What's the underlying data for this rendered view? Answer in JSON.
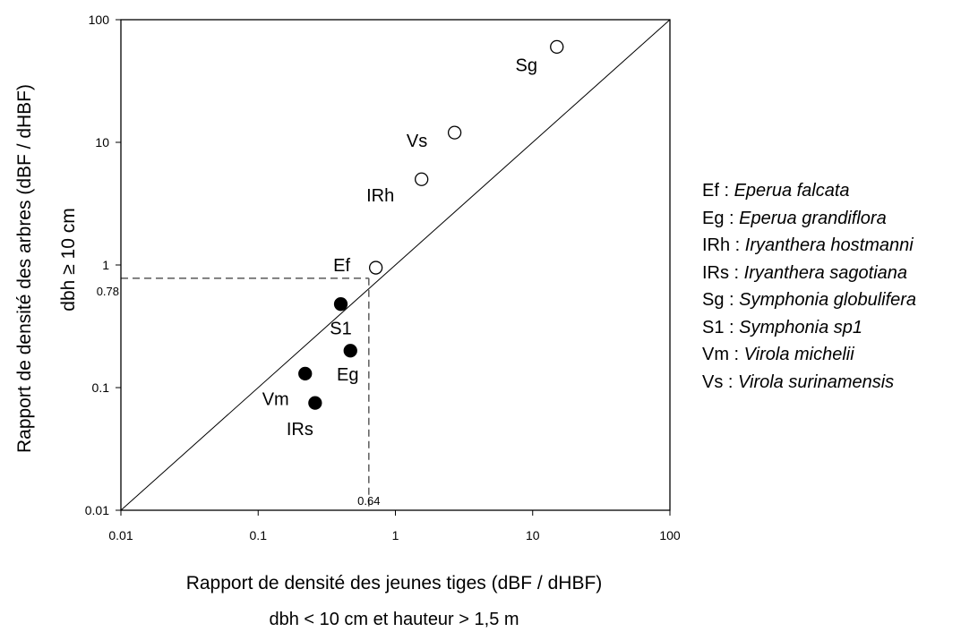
{
  "chart_data": {
    "type": "scatter",
    "x_scale": "log",
    "y_scale": "log",
    "xlim": [
      0.01,
      100
    ],
    "ylim": [
      0.01,
      100
    ],
    "xticks": [
      "0.01",
      "0.1",
      "1",
      "10",
      "100"
    ],
    "yticks": [
      "0.01",
      "0.1",
      "1",
      "10",
      "100"
    ],
    "xlabel": "Rapport de densité des jeunes tiges (dBF / dHBF)",
    "xlabel2": "dbh < 10 cm et hauteur > 1,5 m",
    "ylabel": "Rapport de densité des arbres (dBF / dHBF)",
    "ylabel2": "dbh ≥ 10 cm",
    "reference_line": "1:1",
    "threshold": {
      "x": 0.64,
      "y": 0.78,
      "x_label": "0.64",
      "y_label": "0.78"
    },
    "points": [
      {
        "label": "Sg",
        "x": 15,
        "y": 60,
        "filled": false
      },
      {
        "label": "Vs",
        "x": 2.7,
        "y": 12,
        "filled": false
      },
      {
        "label": "IRh",
        "x": 1.55,
        "y": 5.0,
        "filled": false
      },
      {
        "label": "Ef",
        "x": 0.72,
        "y": 0.95,
        "filled": false
      },
      {
        "label": "S1",
        "x": 0.4,
        "y": 0.48,
        "filled": true
      },
      {
        "label": "Eg",
        "x": 0.47,
        "y": 0.2,
        "filled": true
      },
      {
        "label": "Vm",
        "x": 0.22,
        "y": 0.13,
        "filled": true
      },
      {
        "label": "IRs",
        "x": 0.26,
        "y": 0.075,
        "filled": true
      }
    ],
    "grid": false,
    "legend_position": "right"
  },
  "legend": [
    {
      "code": "Ef",
      "species": "Eperua falcata"
    },
    {
      "code": "Eg",
      "species": "Eperua grandiflora"
    },
    {
      "code": "IRh",
      "species": "Iryanthera hostmanni"
    },
    {
      "code": "IRs",
      "species": "Iryanthera sagotiana"
    },
    {
      "code": "Sg",
      "species": "Symphonia globulifera"
    },
    {
      "code": "S1",
      "species": "Symphonia sp1"
    },
    {
      "code": "Vm",
      "species": "Virola michelii"
    },
    {
      "code": "Vs",
      "species": "Virola surinamensis"
    }
  ]
}
